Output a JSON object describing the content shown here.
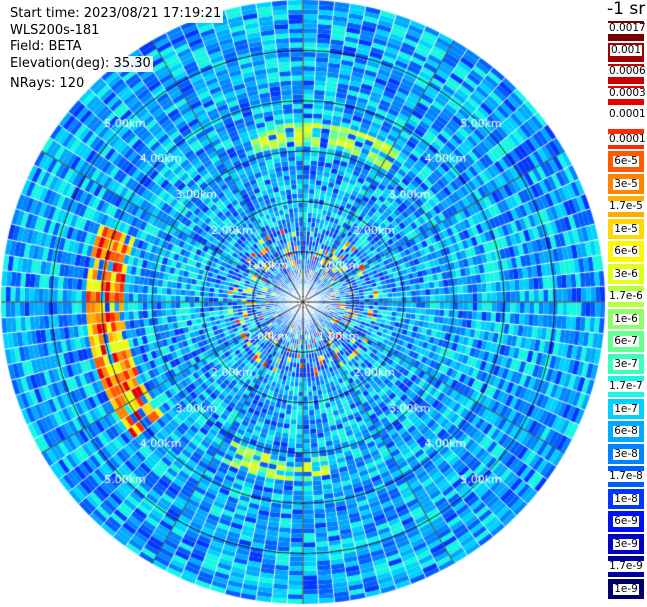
{
  "info": {
    "start_time": "Start time: 2023/08/21 17:19:21",
    "instrument": "WLS200s-181",
    "field": "Field: BETA",
    "elevation": "Elevation(deg): 35.30",
    "nrays": "NRays: 120"
  },
  "unit_label": "-1 sr",
  "colorscale": [
    {
      "label": "0.0017",
      "color": "#7a0000"
    },
    {
      "label": "0.001",
      "color": "#a00000"
    },
    {
      "label": "0.0006",
      "color": "#c80000"
    },
    {
      "label": "0.0003",
      "color": "#e60000"
    },
    {
      "label": "0.00017",
      "color": "#ffffff"
    },
    {
      "label": "0.0001",
      "color": "#ff2a00"
    },
    {
      "label": "6e-5",
      "color": "#ff5a00"
    },
    {
      "label": "3e-5",
      "color": "#ff8400"
    },
    {
      "label": "1.7e-5",
      "color": "#ffae00"
    },
    {
      "label": "1e-5",
      "color": "#ffd800"
    },
    {
      "label": "6e-6",
      "color": "#fff600"
    },
    {
      "label": "3e-6",
      "color": "#e2ff16"
    },
    {
      "label": "1.7e-6",
      "color": "#b8ff40"
    },
    {
      "label": "1e-6",
      "color": "#8eff6a"
    },
    {
      "label": "6e-7",
      "color": "#66ff92"
    },
    {
      "label": "3e-7",
      "color": "#3cffbc"
    },
    {
      "label": "1.7e-7",
      "color": "#16f6e2"
    },
    {
      "label": "1e-7",
      "color": "#00d2ff"
    },
    {
      "label": "6e-8",
      "color": "#00aaff"
    },
    {
      "label": "3e-8",
      "color": "#0084ff"
    },
    {
      "label": "1.7e-8",
      "color": "#005eff"
    },
    {
      "label": "1e-8",
      "color": "#0036ff"
    },
    {
      "label": "6e-9",
      "color": "#0010f4"
    },
    {
      "label": "3e-9",
      "color": "#0000c8"
    },
    {
      "label": "1.7e-9",
      "color": "#00009a"
    },
    {
      "label": "1e-9",
      "color": "#00006c"
    }
  ],
  "chart_data": {
    "type": "heatmap",
    "projection": "polar (PPI scan)",
    "field": "BETA",
    "elevation_deg": 35.3,
    "n_rays": 120,
    "range_rings_km": [
      1,
      2,
      3,
      4,
      5
    ],
    "ring_labels": [
      "1.00km",
      "2.00km",
      "3.00km",
      "4.00km",
      "5.00km"
    ],
    "max_range_km": 6,
    "colorscale_log": true,
    "background_level": "3e-8 to 1e-7 (blue/cyan)",
    "features": [
      {
        "description": "strong return arc",
        "azimuth_deg_range": [
          230,
          290
        ],
        "range_km": [
          3.6,
          4.3
        ],
        "level": "3e-6 to 6e-5"
      },
      {
        "description": "enhanced return band",
        "azimuth_deg_range": [
          170,
          205
        ],
        "range_km": [
          3.1,
          3.6
        ],
        "level": "1e-6 to 3e-6"
      },
      {
        "description": "enhanced return band",
        "azimuth_deg_range": [
          340,
          30
        ],
        "range_km": [
          3.1,
          3.6
        ],
        "level": "6e-7 to 3e-6"
      },
      {
        "description": "near-field spots",
        "azimuth_deg_range": [
          0,
          360
        ],
        "range_km": [
          0.5,
          1.5
        ],
        "level": "up to 3e-5"
      }
    ]
  }
}
